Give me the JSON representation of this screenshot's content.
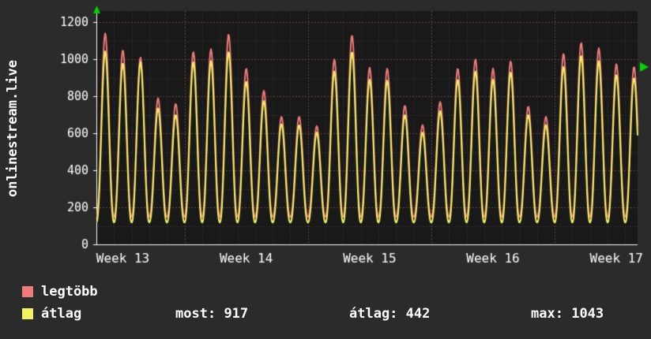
{
  "page": {
    "background": "#2b2b2b",
    "text_color": "#ffffff"
  },
  "chart_data": {
    "type": "line",
    "title": "",
    "ylabel": "onlinestream.live",
    "xlabel": "",
    "ylim": [
      0,
      1260
    ],
    "y_ticks": [
      0,
      200,
      400,
      600,
      800,
      1000,
      1200
    ],
    "x_tick_labels": [
      "Week 13",
      "Week 14",
      "Week 15",
      "Week 16",
      "Week 17"
    ],
    "week_label_day_centers": [
      1.5,
      8.5,
      15.5,
      22.5,
      29.5
    ],
    "days_visible": 30.7,
    "grid": {
      "plot_bg": "#191919",
      "minor_color": "#383838",
      "major_color": "#6a4040",
      "axis_color": "#ffffff",
      "arrow_color": "#00d400"
    },
    "legend_position": "bottom-left",
    "series": [
      {
        "name": "legtöbb",
        "color": "#ef7a7a",
        "trough": 148,
        "day_peaks": [
          1140,
          1050,
          1010,
          790,
          760,
          1040,
          1055,
          1135,
          950,
          830,
          690,
          690,
          640,
          1000,
          1130,
          955,
          950,
          750,
          645,
          770,
          950,
          1000,
          950,
          990,
          745,
          690,
          1030,
          1090,
          1060,
          975,
          960
        ]
      },
      {
        "name": "átlag",
        "color": "#f2f163",
        "trough": 118,
        "day_peaks": [
          1043,
          980,
          985,
          735,
          700,
          985,
          990,
          1040,
          880,
          775,
          650,
          645,
          605,
          935,
          1040,
          890,
          885,
          700,
          605,
          720,
          890,
          935,
          890,
          930,
          700,
          645,
          960,
          1020,
          990,
          915,
          900
        ]
      }
    ],
    "legend_stats": [
      {
        "label": "most:",
        "value": "917"
      },
      {
        "label": "átlag:",
        "value": "442"
      },
      {
        "label": "max:",
        "value": "1043"
      }
    ]
  }
}
